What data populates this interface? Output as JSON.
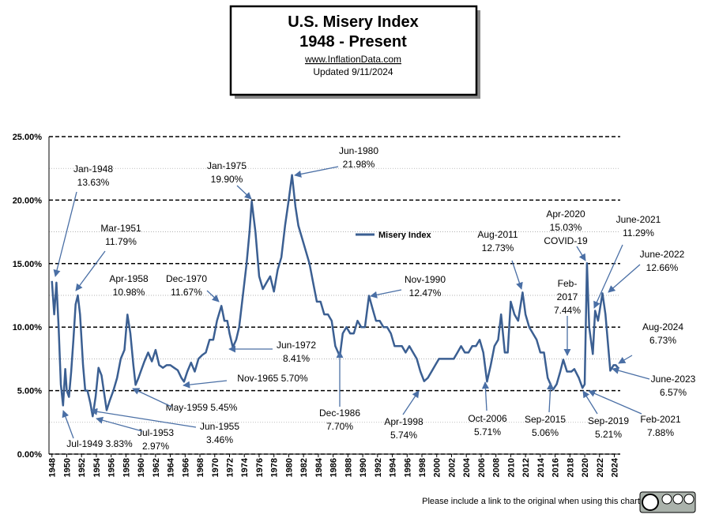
{
  "chart_data": {
    "type": "line",
    "title": "U.S. Misery Index",
    "subtitle": "1948 - Present",
    "source": "www.InflationData.com",
    "updated": "Updated  9/11/2024",
    "footer": "Please include a link to the original when using this chart",
    "x": [
      1948.0,
      1948.3,
      1948.6,
      1948.9,
      1949.2,
      1949.5,
      1949.8,
      1950.0,
      1950.3,
      1950.6,
      1950.9,
      1951.2,
      1951.5,
      1951.8,
      1952.2,
      1952.5,
      1952.8,
      1953.2,
      1953.5,
      1953.9,
      1954.3,
      1954.7,
      1955.0,
      1955.4,
      1955.8,
      1956.3,
      1956.8,
      1957.3,
      1957.8,
      1958.2,
      1958.6,
      1959.0,
      1959.3,
      1959.7,
      1960.0,
      1960.5,
      1961.0,
      1961.5,
      1962.0,
      1962.5,
      1963.0,
      1963.5,
      1964.0,
      1964.5,
      1965.0,
      1965.5,
      1965.85,
      1966.3,
      1966.8,
      1967.3,
      1967.8,
      1968.3,
      1968.8,
      1969.3,
      1969.8,
      1970.3,
      1970.9,
      1971.3,
      1971.7,
      1972.0,
      1972.45,
      1972.9,
      1973.3,
      1973.8,
      1974.3,
      1974.7,
      1975.0,
      1975.5,
      1976.0,
      1976.5,
      1977.0,
      1977.5,
      1978.0,
      1978.5,
      1979.0,
      1979.5,
      1980.0,
      1980.45,
      1980.9,
      1981.3,
      1981.8,
      1982.3,
      1982.8,
      1983.3,
      1983.8,
      1984.3,
      1984.8,
      1985.3,
      1985.8,
      1986.3,
      1986.9,
      1987.3,
      1987.8,
      1988.3,
      1988.8,
      1989.3,
      1989.8,
      1990.3,
      1990.85,
      1991.3,
      1991.8,
      1992.3,
      1992.8,
      1993.3,
      1993.8,
      1994.3,
      1994.8,
      1995.3,
      1995.8,
      1996.3,
      1996.8,
      1997.3,
      1997.8,
      1998.3,
      1998.8,
      1999.3,
      1999.8,
      2000.3,
      2000.8,
      2001.3,
      2001.8,
      2002.3,
      2002.8,
      2003.3,
      2003.8,
      2004.3,
      2004.8,
      2005.3,
      2005.8,
      2006.3,
      2006.8,
      2007.3,
      2007.8,
      2008.3,
      2008.7,
      2009.2,
      2009.6,
      2010.0,
      2010.5,
      2011.0,
      2011.6,
      2012.0,
      2012.5,
      2013.0,
      2013.5,
      2014.0,
      2014.5,
      2015.0,
      2015.7,
      2016.2,
      2016.7,
      2017.1,
      2017.6,
      2018.2,
      2018.6,
      2019.2,
      2019.7,
      2020.0,
      2020.3,
      2020.6,
      2021.1,
      2021.4,
      2021.8,
      2022.4,
      2022.8,
      2023.45,
      2023.9,
      2024.2,
      2024.6
    ],
    "series": [
      {
        "name": "Misery Index",
        "color": "#3b5f92",
        "values": [
          13.63,
          11.0,
          13.5,
          10.0,
          5.5,
          3.83,
          6.7,
          5.0,
          4.5,
          6.5,
          9.0,
          11.79,
          12.5,
          11.0,
          7.0,
          5.0,
          5.0,
          4.0,
          2.97,
          4.5,
          6.8,
          6.2,
          5.0,
          3.46,
          4.2,
          5.0,
          6.0,
          7.5,
          8.2,
          10.98,
          9.5,
          7.0,
          5.45,
          6.0,
          6.5,
          7.3,
          8.0,
          7.3,
          8.2,
          7.0,
          6.8,
          7.0,
          7.0,
          6.8,
          6.6,
          6.0,
          5.7,
          6.5,
          7.2,
          6.5,
          7.5,
          7.8,
          8.0,
          9.0,
          9.0,
          10.5,
          11.67,
          10.5,
          10.5,
          9.5,
          8.41,
          9.0,
          10.0,
          12.5,
          15.0,
          17.5,
          19.9,
          17.5,
          14.0,
          13.0,
          13.5,
          14.0,
          12.8,
          14.5,
          15.5,
          18.0,
          20.0,
          21.98,
          19.5,
          18.0,
          17.0,
          16.0,
          15.0,
          13.5,
          12.0,
          12.0,
          11.0,
          11.0,
          10.5,
          8.5,
          7.7,
          9.5,
          10.0,
          9.5,
          9.5,
          10.5,
          10.0,
          10.0,
          12.47,
          11.5,
          10.5,
          10.5,
          10.0,
          10.0,
          9.5,
          8.5,
          8.5,
          8.5,
          8.0,
          8.5,
          8.0,
          7.5,
          6.5,
          5.74,
          6.0,
          6.5,
          7.0,
          7.5,
          7.5,
          7.5,
          7.5,
          7.5,
          8.0,
          8.5,
          8.0,
          8.0,
          8.5,
          8.5,
          9.0,
          8.0,
          5.71,
          7.0,
          8.5,
          9.0,
          11.0,
          8.0,
          8.0,
          12.0,
          11.0,
          10.5,
          12.73,
          11.0,
          10.0,
          9.5,
          9.0,
          8.0,
          8.0,
          6.0,
          5.06,
          5.5,
          6.5,
          7.44,
          6.5,
          6.5,
          6.7,
          6.0,
          5.21,
          5.5,
          15.03,
          10.0,
          7.88,
          11.29,
          10.5,
          12.66,
          11.0,
          6.57,
          7.0,
          7.0,
          6.73
        ]
      }
    ],
    "xlim": [
      1947.6,
      2024.8
    ],
    "xticks": [
      1948,
      1950,
      1952,
      1954,
      1956,
      1958,
      1960,
      1962,
      1964,
      1966,
      1968,
      1970,
      1972,
      1974,
      1976,
      1978,
      1980,
      1982,
      1984,
      1986,
      1988,
      1990,
      1992,
      1994,
      1996,
      1998,
      2000,
      2002,
      2004,
      2006,
      2008,
      2010,
      2012,
      2014,
      2016,
      2018,
      2020,
      2022,
      2024
    ],
    "ylim": [
      0,
      25
    ],
    "yticks": [
      {
        "value": 0,
        "label": "0.00%"
      },
      {
        "value": 5,
        "label": "5.00%"
      },
      {
        "value": 10,
        "label": "10.00%"
      },
      {
        "value": 15,
        "label": "15.00%"
      },
      {
        "value": 20,
        "label": "20.00%"
      },
      {
        "value": 25,
        "label": "25.00%"
      }
    ],
    "grid": true,
    "annotations": [
      {
        "lines": [
          "Jan-1948",
          "13.63%"
        ]
      },
      {
        "lines": [
          "Mar-1951",
          "11.79%"
        ]
      },
      {
        "lines": [
          "Apr-1958",
          "10.98%"
        ]
      },
      {
        "lines": [
          "Dec-1970",
          "11.67%"
        ]
      },
      {
        "lines": [
          "Jan-1975",
          "19.90%"
        ]
      },
      {
        "lines": [
          "Jun-1980",
          "21.98%"
        ]
      },
      {
        "lines": [
          "Nov-1990",
          "12.47%"
        ]
      },
      {
        "lines": [
          "Aug-2011",
          "12.73%"
        ]
      },
      {
        "lines": [
          "Apr-2020",
          "15.03%",
          "COVID-19"
        ]
      },
      {
        "lines": [
          "June-2021",
          "11.29%"
        ]
      },
      {
        "lines": [
          "June-2022",
          "12.66%"
        ]
      },
      {
        "lines": [
          "Feb-",
          "2017",
          "7.44%"
        ]
      },
      {
        "lines": [
          "Aug-2024",
          "6.73%"
        ]
      },
      {
        "lines": [
          "June-2023",
          "6.57%"
        ]
      },
      {
        "lines": [
          "Feb-2021",
          "7.88%"
        ]
      },
      {
        "lines": [
          "Sep-2019",
          "5.21%"
        ]
      },
      {
        "lines": [
          "Sep-2015",
          "5.06%"
        ]
      },
      {
        "lines": [
          "Oct-2006",
          "5.71%"
        ]
      },
      {
        "lines": [
          "Apr-1998",
          "5.74%"
        ]
      },
      {
        "lines": [
          "Dec-1986",
          "7.70%"
        ]
      },
      {
        "lines": [
          "Jun-1972",
          "8.41%"
        ]
      },
      {
        "lines": [
          "Nov-1965  5.70%"
        ]
      },
      {
        "lines": [
          "May-1959  5.45%"
        ]
      },
      {
        "lines": [
          "Jun-1955",
          "3.46%"
        ]
      },
      {
        "lines": [
          "Jul-1953",
          "2.97%"
        ]
      },
      {
        "lines": [
          "Jul-1949  3.83%"
        ]
      }
    ]
  }
}
